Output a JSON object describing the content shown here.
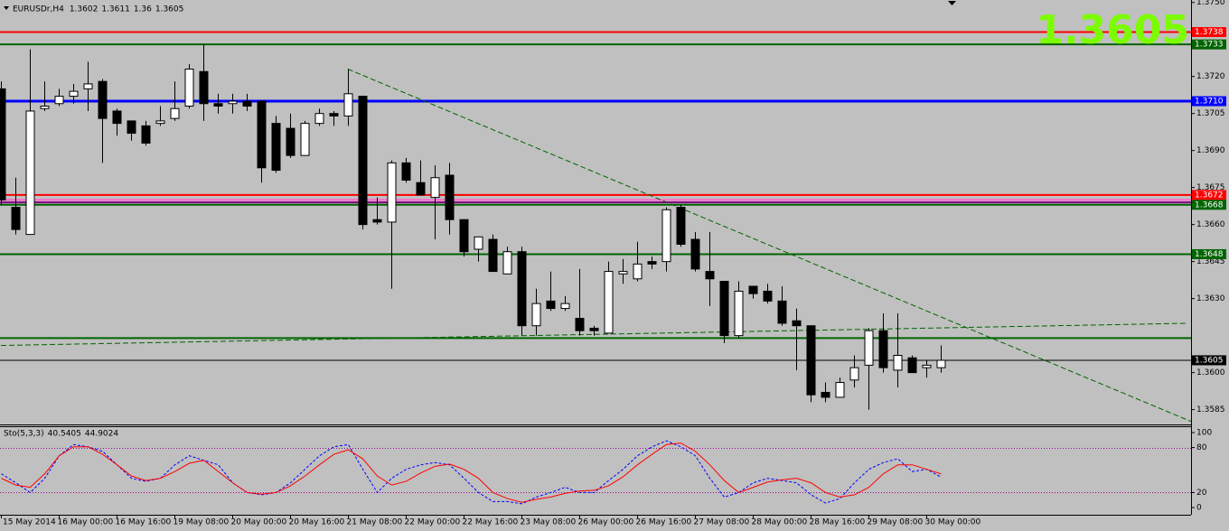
{
  "chart_data": [
    {
      "type": "candlestick",
      "title": "EURUSDr,H4",
      "categories": [
        "15 May 2014",
        null,
        null,
        null,
        "16 May 00:00",
        null,
        null,
        null,
        "16 May 16:00",
        null,
        null,
        null,
        "19 May 08:00",
        null,
        null,
        null,
        "20 May 00:00",
        null,
        null,
        null,
        "20 May 16:00",
        null,
        null,
        null,
        "21 May 08:00",
        null,
        null,
        null,
        "22 May 00:00",
        null,
        null,
        null,
        "22 May 16:00",
        null,
        null,
        null,
        "23 May 08:00",
        null,
        null,
        null,
        "26 May 00:00",
        null,
        null,
        null,
        "26 May 16:00",
        null,
        null,
        null,
        "27 May 08:00",
        null,
        null,
        null,
        "28 May 00:00",
        null,
        null,
        null,
        "28 May 16:00",
        null,
        null,
        null,
        "29 May 08:00",
        null,
        null,
        null,
        "30 May 00:00",
        null
      ],
      "open": [
        1.3715,
        1.3667,
        1.3656,
        1.3707,
        1.3709,
        1.3712,
        1.3715,
        1.3718,
        1.3706,
        1.3702,
        1.37,
        1.3701,
        1.3703,
        1.3708,
        1.3722,
        1.3709,
        1.3709,
        1.371,
        1.371,
        1.3701,
        1.3699,
        1.3688,
        1.3701,
        1.3705,
        1.3704,
        1.3712,
        1.3662,
        1.3661,
        1.3685,
        1.3677,
        1.3671,
        1.368,
        1.3662,
        1.365,
        1.3654,
        1.364,
        1.3649,
        1.3619,
        1.3629,
        1.3626,
        1.3622,
        1.3618,
        1.3616,
        1.364,
        1.3638,
        1.3645,
        1.3645,
        1.3667,
        1.3654,
        1.3641,
        1.3637,
        1.3615,
        1.3635,
        1.3633,
        1.3629,
        1.3621,
        1.3619,
        1.3592,
        1.359,
        1.3597,
        1.3603,
        1.3617,
        1.3601,
        1.3606,
        1.3602,
        1.3602
      ],
      "high": [
        1.3718,
        1.3679,
        1.3731,
        1.3718,
        1.3715,
        1.3717,
        1.3726,
        1.3719,
        1.3707,
        1.3702,
        1.3702,
        1.3708,
        1.3718,
        1.3725,
        1.3733,
        1.3713,
        1.3713,
        1.3713,
        1.371,
        1.3704,
        1.3705,
        1.3702,
        1.3707,
        1.3706,
        1.3723,
        1.3712,
        1.3671,
        1.3686,
        1.3687,
        1.3686,
        1.3684,
        1.3685,
        1.3662,
        1.3655,
        1.3656,
        1.3651,
        1.3651,
        1.3634,
        1.3641,
        1.3631,
        1.3642,
        1.3619,
        1.3645,
        1.3646,
        1.3653,
        1.3647,
        1.3667,
        1.3668,
        1.3657,
        1.3657,
        1.3637,
        1.3637,
        1.3635,
        1.3636,
        1.3635,
        1.3626,
        1.3619,
        1.3596,
        1.3598,
        1.3607,
        1.3618,
        1.3624,
        1.3624,
        1.3607,
        1.3605,
        1.3611
      ],
      "low": [
        1.3668,
        1.3656,
        1.3656,
        1.3706,
        1.3708,
        1.3709,
        1.3706,
        1.3685,
        1.3696,
        1.3694,
        1.3692,
        1.37,
        1.3702,
        1.3707,
        1.3702,
        1.3705,
        1.3705,
        1.3706,
        1.3677,
        1.3681,
        1.3687,
        1.3688,
        1.37,
        1.37,
        1.37,
        1.3658,
        1.366,
        1.3634,
        1.3677,
        1.3672,
        1.3654,
        1.3656,
        1.3647,
        1.3645,
        1.3641,
        1.364,
        1.3615,
        1.3615,
        1.3625,
        1.3625,
        1.3615,
        1.3615,
        1.3616,
        1.3636,
        1.3637,
        1.3642,
        1.3641,
        1.3651,
        1.3641,
        1.3627,
        1.3612,
        1.3614,
        1.363,
        1.3628,
        1.3619,
        1.3601,
        1.3588,
        1.3588,
        1.359,
        1.3594,
        1.3585,
        1.36,
        1.3594,
        1.36,
        1.3598,
        1.36
      ],
      "close": [
        1.367,
        1.3658,
        1.3706,
        1.3708,
        1.3712,
        1.3714,
        1.3717,
        1.3703,
        1.3701,
        1.3697,
        1.3693,
        1.3702,
        1.3707,
        1.3723,
        1.3709,
        1.3708,
        1.371,
        1.3708,
        1.3683,
        1.3682,
        1.3688,
        1.3701,
        1.3705,
        1.3704,
        1.3713,
        1.366,
        1.3661,
        1.3685,
        1.3678,
        1.3672,
        1.3679,
        1.3662,
        1.3649,
        1.3655,
        1.3641,
        1.3649,
        1.3619,
        1.3628,
        1.3626,
        1.3628,
        1.3617,
        1.3617,
        1.3641,
        1.3641,
        1.3644,
        1.3644,
        1.3666,
        1.3652,
        1.3642,
        1.3638,
        1.3615,
        1.3633,
        1.3632,
        1.3629,
        1.362,
        1.3619,
        1.3591,
        1.359,
        1.3596,
        1.3602,
        1.3617,
        1.3602,
        1.3607,
        1.36,
        1.3603,
        1.3605
      ],
      "up_color": "#ffffff",
      "down_color": "#000000",
      "ylim": [
        1.3579,
        1.3751
      ],
      "yticks": [
        {
          "value": 1.375,
          "label": "1.3750"
        },
        {
          "value": 1.372,
          "label": "1.3720"
        },
        1.3705,
        {
          "value": 1.369,
          "label": "1.3690"
        },
        1.3675,
        {
          "value": 1.366,
          "label": "1.3660"
        },
        1.3645,
        {
          "value": 1.363,
          "label": "1.3630"
        },
        {
          "value": 1.36,
          "label": "1.3600"
        },
        1.3585
      ],
      "hlines": [
        {
          "value": 1.3738,
          "color": "#ff0000"
        },
        {
          "value": 1.3733,
          "color": "#006400"
        },
        {
          "value": 1.371,
          "label": "1.3710",
          "color": "#0000ff"
        },
        {
          "value": 1.3672,
          "color": "#ff0000"
        },
        {
          "value": 1.3668,
          "color": "#006400"
        },
        {
          "value": 1.3648,
          "color": "#006400"
        }
      ],
      "extra_hlines": [
        {
          "value": 1.367,
          "color": "#ff66cc"
        },
        {
          "value": 1.3669,
          "color": "#800080"
        },
        {
          "value": 1.3614,
          "color": "#006400"
        }
      ],
      "trendlines": [
        {
          "x": [
            24,
            82.4
          ],
          "y": [
            1.3723,
            1.358
          ],
          "color": "#006400"
        },
        {
          "x": [
            0,
            82.1
          ],
          "y": [
            1.3611,
            1.362
          ],
          "color": "#006400"
        }
      ],
      "price_label_color": "#7cfc00"
    },
    {
      "type": "line",
      "title": "Sto(5,3,3)",
      "series": [
        {
          "color": "#0000ff",
          "dash": true,
          "values": [
            45,
            33,
            20,
            39,
            69,
            84,
            81,
            75,
            57,
            39,
            35,
            39,
            57,
            69,
            63,
            57,
            33,
            20,
            17,
            20,
            33,
            51,
            69,
            81,
            84,
            51,
            20,
            39,
            51,
            57,
            60,
            57,
            39,
            20,
            8,
            8,
            5,
            14,
            20,
            27,
            20,
            20,
            36,
            51,
            69,
            81,
            89,
            81,
            69,
            39,
            14,
            20,
            33,
            39,
            36,
            33,
            17,
            6,
            12,
            33,
            51,
            60,
            65,
            48,
            51,
            40.5405
          ]
        },
        {
          "color": "#ff0000",
          "dash": false,
          "values": [
            39,
            30,
            27,
            45,
            69,
            81,
            81,
            71,
            57,
            42,
            36,
            39,
            48,
            59,
            63,
            48,
            33,
            20,
            18,
            20,
            29,
            42,
            57,
            71,
            77,
            65,
            42,
            30,
            35,
            46,
            55,
            58,
            51,
            39,
            20,
            12,
            7,
            11,
            14,
            19,
            22,
            23,
            29,
            41,
            57,
            71,
            84,
            86,
            75,
            57,
            36,
            20,
            27,
            34,
            37,
            39,
            33,
            20,
            14,
            17,
            27,
            45,
            57,
            57,
            51,
            44.9024
          ]
        }
      ],
      "ylim": [
        -9.6,
        107.2
      ],
      "yticks": [
        100,
        80,
        20,
        0
      ],
      "levels": [
        80,
        20
      ],
      "level_color": "#a000a0"
    }
  ]
}
